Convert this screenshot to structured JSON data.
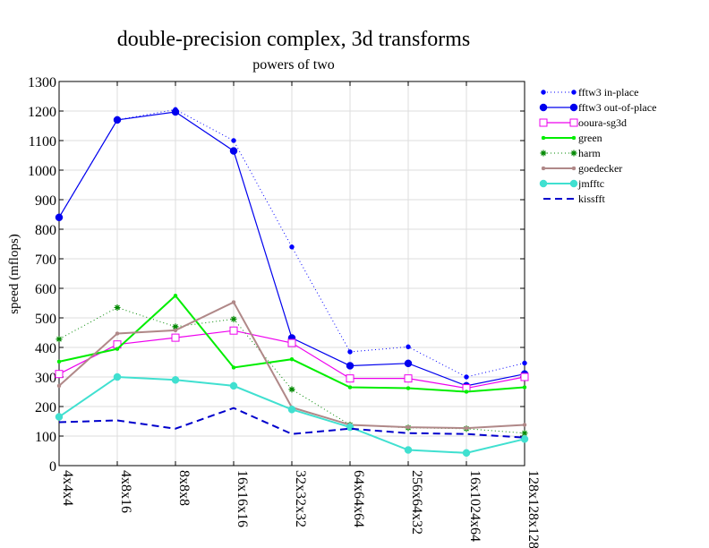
{
  "chart_data": {
    "type": "line",
    "title": "double-precision complex, 3d transforms",
    "subtitle": "powers of two",
    "xlabel": "",
    "ylabel": "speed (mflops)",
    "ylim": [
      0,
      1300
    ],
    "yticks": [
      "0",
      "100",
      "200",
      "300",
      "400",
      "500",
      "600",
      "700",
      "800",
      "900",
      "1000",
      "1100",
      "1200",
      "1300"
    ],
    "grid": true,
    "legend_position": "right",
    "categories": [
      "4x4x4",
      "4x8x16",
      "8x8x8",
      "16x16x16",
      "32x32x32",
      "64x64x64",
      "256x64x32",
      "16x1024x64",
      "128x128x128"
    ],
    "series": [
      {
        "name": "fftw3 in-place",
        "color": "#0000ff",
        "dash": "1,3",
        "width": 1,
        "marker": "dot",
        "msize": 2.5,
        "values": [
          840,
          1170,
          1205,
          1100,
          740,
          385,
          402,
          300,
          347
        ]
      },
      {
        "name": "fftw3 out-of-place",
        "color": "#0000ee",
        "dash": "",
        "width": 1.2,
        "marker": "dot",
        "msize": 4,
        "values": [
          840,
          1170,
          1197,
          1065,
          432,
          338,
          346,
          270,
          310
        ]
      },
      {
        "name": "ooura-sg3d",
        "color": "#ee00ee",
        "dash": "",
        "width": 1.2,
        "marker": "square",
        "msize": 4,
        "values": [
          310,
          410,
          433,
          457,
          415,
          295,
          295,
          262,
          300
        ]
      },
      {
        "name": "green",
        "color": "#00ee00",
        "dash": "",
        "width": 2,
        "marker": "dot",
        "msize": 2,
        "values": [
          352,
          395,
          575,
          332,
          360,
          265,
          262,
          250,
          265
        ]
      },
      {
        "name": "harm",
        "color": "#008800",
        "dash": "1,3",
        "width": 1,
        "marker": "star",
        "msize": 3.5,
        "values": [
          428,
          535,
          470,
          496,
          258,
          138,
          128,
          125,
          110
        ]
      },
      {
        "name": "goedecker",
        "color": "#b08888",
        "dash": "",
        "width": 2,
        "marker": "dot",
        "msize": 2,
        "values": [
          270,
          447,
          458,
          553,
          197,
          138,
          130,
          127,
          138
        ]
      },
      {
        "name": "jmfftc",
        "color": "#40e0d0",
        "dash": "",
        "width": 2,
        "marker": "dot",
        "msize": 4,
        "values": [
          165,
          300,
          290,
          270,
          190,
          130,
          53,
          43,
          90
        ]
      },
      {
        "name": "kissfft",
        "color": "#0000cc",
        "dash": "8,5",
        "width": 2,
        "marker": "none",
        "msize": 0,
        "values": [
          147,
          153,
          125,
          195,
          107,
          125,
          110,
          107,
          95
        ]
      }
    ]
  }
}
